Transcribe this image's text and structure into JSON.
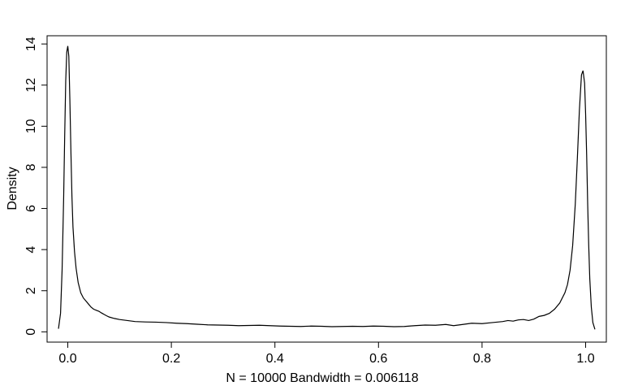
{
  "chart_data": {
    "type": "line",
    "title": "",
    "xlabel": "N = 10000   Bandwidth = 0.006118",
    "ylabel": "Density",
    "xlim": [
      -0.04,
      1.04
    ],
    "ylim": [
      -0.5,
      14.4
    ],
    "x_ticks": [
      0.0,
      0.2,
      0.4,
      0.6,
      0.8,
      1.0
    ],
    "x_tick_labels": [
      "0.0",
      "0.2",
      "0.4",
      "0.6",
      "0.8",
      "1.0"
    ],
    "y_ticks": [
      0,
      2,
      4,
      6,
      8,
      10,
      12,
      14
    ],
    "y_tick_labels": [
      "0",
      "2",
      "4",
      "6",
      "8",
      "10",
      "12",
      "14"
    ],
    "grid": false,
    "line_color": "#000000",
    "series": [
      {
        "x": [
          -0.018,
          -0.014,
          -0.011,
          -0.008,
          -0.006,
          -0.004,
          -0.002,
          0.0,
          0.002,
          0.004,
          0.006,
          0.008,
          0.01,
          0.013,
          0.016,
          0.02,
          0.025,
          0.03,
          0.035,
          0.04,
          0.045,
          0.05,
          0.055,
          0.06,
          0.065,
          0.07,
          0.075,
          0.08,
          0.09,
          0.1,
          0.115,
          0.13,
          0.15,
          0.17,
          0.19,
          0.21,
          0.23,
          0.25,
          0.27,
          0.29,
          0.31,
          0.33,
          0.35,
          0.37,
          0.39,
          0.41,
          0.43,
          0.45,
          0.47,
          0.49,
          0.51,
          0.53,
          0.55,
          0.57,
          0.59,
          0.61,
          0.63,
          0.65,
          0.67,
          0.69,
          0.71,
          0.73,
          0.745,
          0.76,
          0.78,
          0.8,
          0.82,
          0.84,
          0.85,
          0.86,
          0.87,
          0.88,
          0.89,
          0.9,
          0.91,
          0.92,
          0.93,
          0.94,
          0.95,
          0.96,
          0.965,
          0.97,
          0.975,
          0.98,
          0.984,
          0.988,
          0.992,
          0.995,
          0.998,
          1.0,
          1.002,
          1.004,
          1.006,
          1.008,
          1.011,
          1.014,
          1.018
        ],
        "y": [
          0.15,
          0.9,
          3.0,
          6.5,
          9.5,
          12.2,
          13.6,
          13.9,
          13.4,
          11.3,
          8.8,
          6.6,
          5.1,
          3.9,
          3.1,
          2.4,
          1.9,
          1.65,
          1.5,
          1.35,
          1.2,
          1.1,
          1.05,
          1.0,
          0.92,
          0.85,
          0.78,
          0.72,
          0.65,
          0.6,
          0.55,
          0.5,
          0.48,
          0.47,
          0.45,
          0.42,
          0.4,
          0.37,
          0.34,
          0.33,
          0.32,
          0.3,
          0.31,
          0.32,
          0.3,
          0.28,
          0.27,
          0.26,
          0.28,
          0.27,
          0.25,
          0.26,
          0.27,
          0.26,
          0.28,
          0.27,
          0.25,
          0.26,
          0.3,
          0.33,
          0.32,
          0.36,
          0.3,
          0.35,
          0.42,
          0.4,
          0.45,
          0.5,
          0.55,
          0.52,
          0.58,
          0.6,
          0.55,
          0.62,
          0.75,
          0.8,
          0.9,
          1.1,
          1.4,
          1.9,
          2.3,
          3.0,
          4.2,
          6.2,
          8.4,
          10.8,
          12.5,
          12.7,
          12.1,
          10.6,
          8.6,
          6.2,
          4.2,
          2.6,
          1.2,
          0.45,
          0.12
        ]
      }
    ]
  }
}
